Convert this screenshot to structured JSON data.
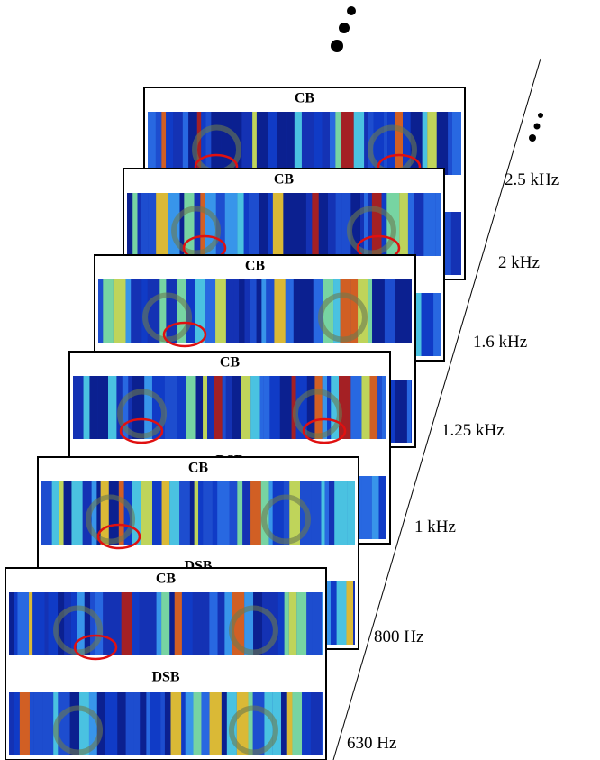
{
  "frames": [
    {
      "top_label": "CB"
    },
    {
      "top_label": "CB"
    },
    {
      "top_label": "CB"
    },
    {
      "top_label": "CB",
      "bottom_label": "DSB"
    },
    {
      "top_label": "CB",
      "bottom_label": "DSB"
    },
    {
      "top_label": "CB",
      "bottom_label": "DSB"
    }
  ],
  "frequencies": [
    "2.5 kHz",
    "2 kHz",
    "1.6 kHz",
    "1.25 kHz",
    "1 kHz",
    "800 Hz",
    "630 Hz"
  ]
}
